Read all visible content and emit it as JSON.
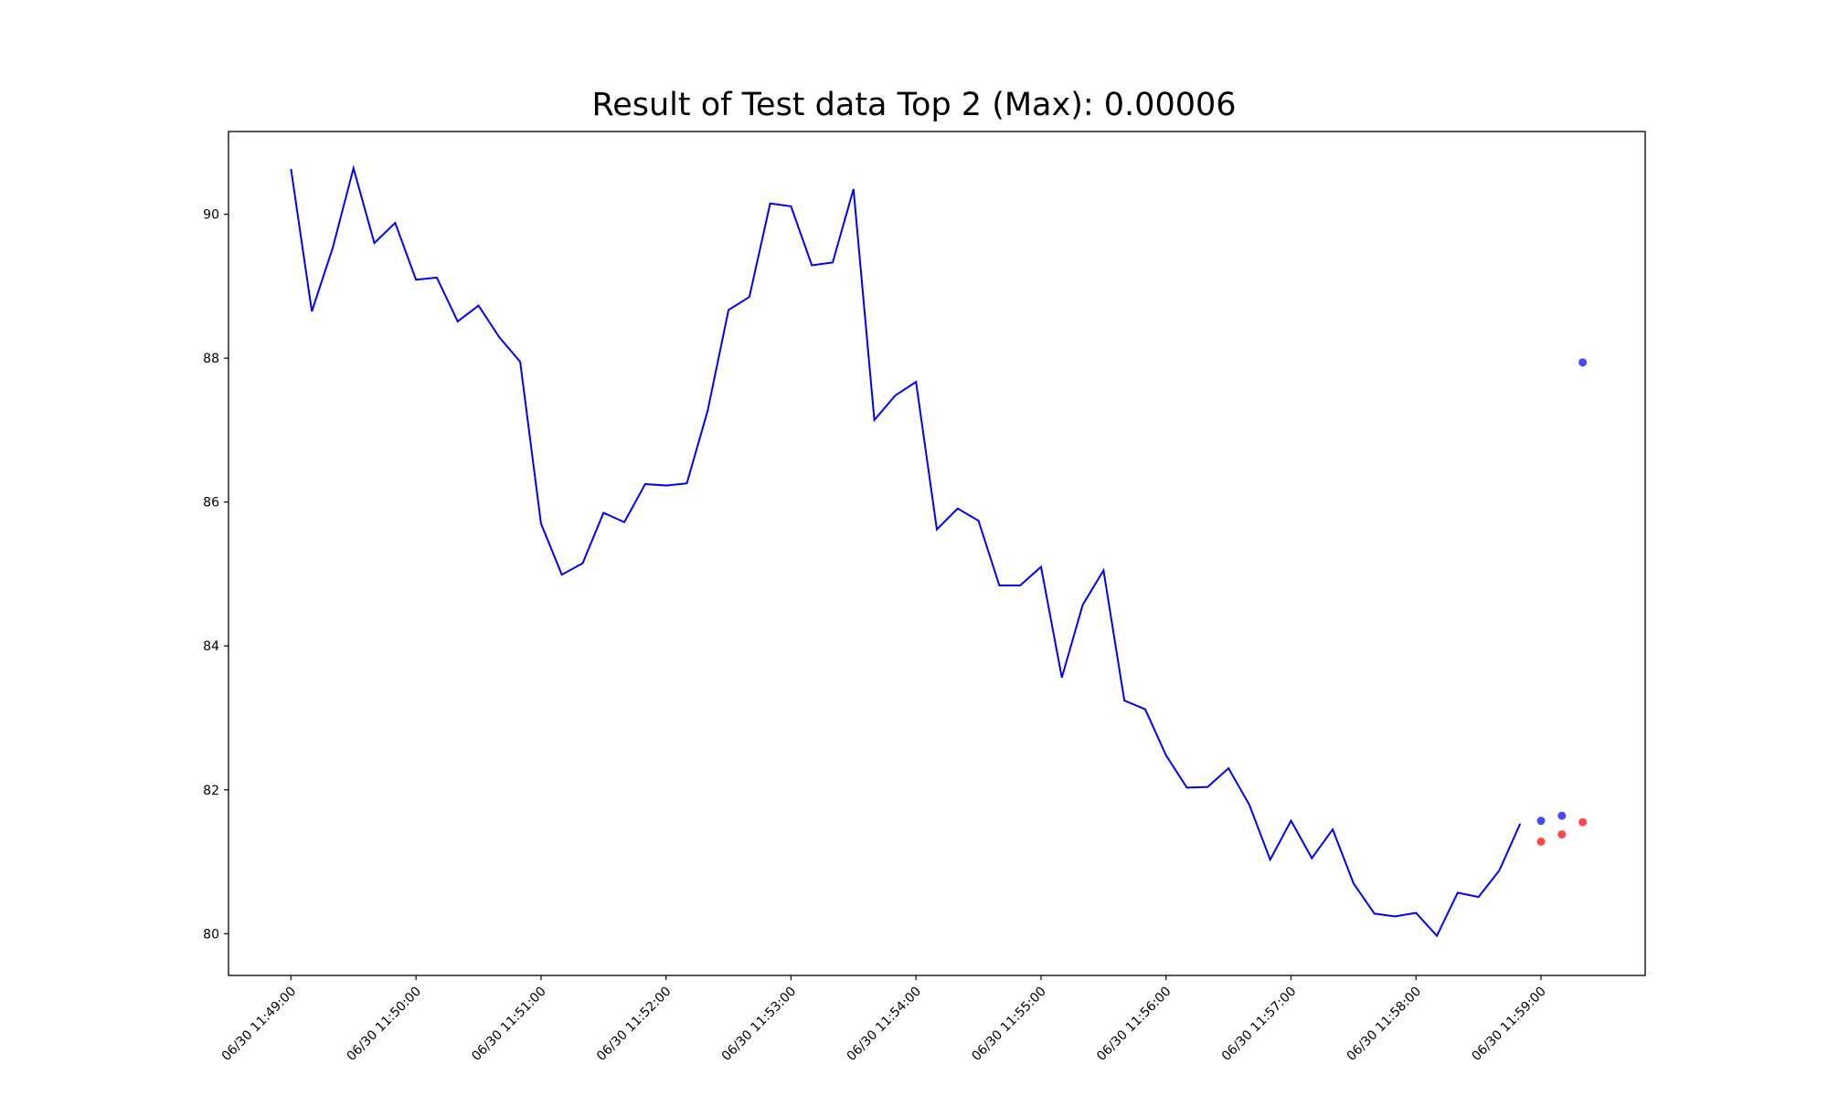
{
  "chart_data": {
    "type": "line",
    "title": "Result of Test data Top 2 (Max): 0.00006",
    "xlabel": "",
    "ylabel": "",
    "grid": false,
    "x_range": [
      "06/30 11:48:30",
      "06/30 11:59:50"
    ],
    "ylim": [
      79.42,
      91.15
    ],
    "yticks": [
      80,
      82,
      84,
      86,
      88,
      90
    ],
    "ytick_labels": [
      "80",
      "82",
      "84",
      "86",
      "88",
      "90"
    ],
    "xticks": [
      "06/30 11:49:00",
      "06/30 11:50:00",
      "06/30 11:51:00",
      "06/30 11:52:00",
      "06/30 11:53:00",
      "06/30 11:54:00",
      "06/30 11:55:00",
      "06/30 11:56:00",
      "06/30 11:57:00",
      "06/30 11:58:00",
      "06/30 11:59:00"
    ],
    "series": [
      {
        "color": "#0000ff",
        "kind": "line",
        "x_start": "06/30 11:49:00",
        "x_step_seconds": 10,
        "values": [
          90.63,
          88.65,
          89.53,
          90.64,
          89.6,
          89.88,
          89.09,
          89.12,
          88.51,
          88.73,
          88.29,
          87.95,
          85.7,
          84.99,
          85.15,
          85.85,
          85.72,
          86.25,
          86.23,
          86.26,
          87.27,
          88.67,
          88.85,
          90.15,
          90.11,
          89.29,
          89.33,
          90.35,
          87.14,
          87.48,
          87.67,
          85.62,
          85.91,
          85.74,
          84.84,
          84.84,
          85.1,
          83.56,
          84.57,
          85.05,
          83.24,
          83.12,
          82.48,
          82.03,
          82.04,
          82.3,
          81.79,
          81.03,
          81.57,
          81.05,
          81.45,
          80.7,
          80.28,
          80.24,
          80.29,
          79.97,
          80.57,
          80.51,
          80.88,
          81.53
        ]
      },
      {
        "color": "#0000ff",
        "kind": "scatter",
        "points": [
          {
            "x": "06/30 11:59:00",
            "y": 81.57
          },
          {
            "x": "06/30 11:59:10",
            "y": 81.64
          },
          {
            "x": "06/30 11:59:20",
            "y": 87.94
          }
        ]
      },
      {
        "color": "#ff0000",
        "kind": "scatter",
        "points": [
          {
            "x": "06/30 11:59:00",
            "y": 81.28
          },
          {
            "x": "06/30 11:59:10",
            "y": 81.38
          },
          {
            "x": "06/30 11:59:20",
            "y": 81.55
          }
        ]
      }
    ]
  }
}
